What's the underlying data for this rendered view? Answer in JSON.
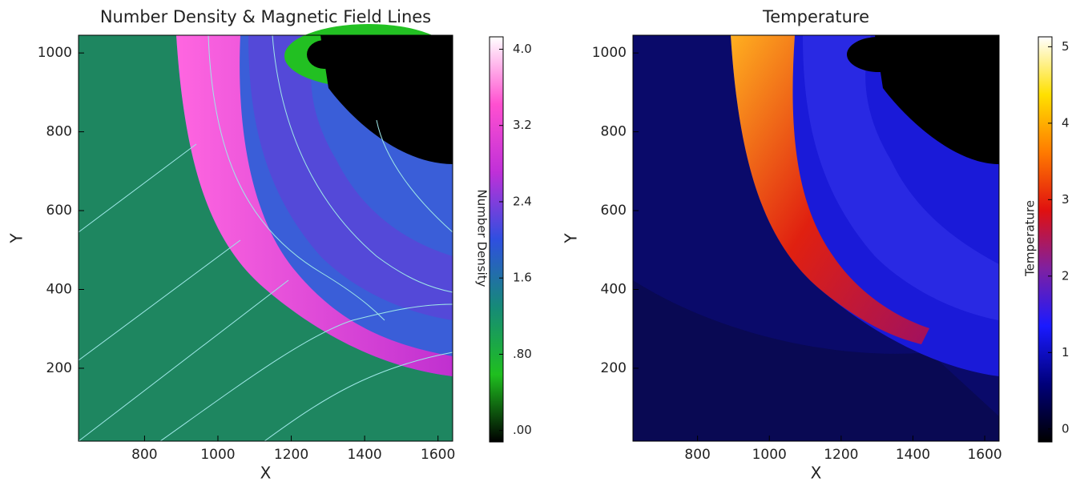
{
  "chart_data": [
    {
      "type": "heatmap",
      "title": "Number Density & Magnetic Field Lines",
      "xlabel": "X",
      "ylabel": "Y",
      "xlim": [
        620,
        1640
      ],
      "ylim": [
        15,
        1045
      ],
      "xticks": [
        800,
        1000,
        1200,
        1400,
        1600
      ],
      "yticks": [
        200,
        400,
        600,
        800,
        1000
      ],
      "colorbar": {
        "label": "Number Density",
        "lim": [
          -0.12,
          4.13
        ],
        "ticks": [
          {
            "value": 0,
            "label": ".00"
          },
          {
            "value": 0.8,
            "label": ".80"
          },
          {
            "value": 1.6,
            "label": "1.6"
          },
          {
            "value": 2.4,
            "label": "2.4"
          },
          {
            "value": 3.2,
            "label": "3.2"
          },
          {
            "value": 4.0,
            "label": "4.0"
          }
        ],
        "colors": [
          "#000000",
          "#1fbf1f",
          "#168a78",
          "#2f4fe0",
          "#c030d8",
          "#ff50d0",
          "#ffffff"
        ]
      }
    },
    {
      "type": "heatmap",
      "title": "Temperature",
      "xlabel": "X",
      "ylabel": "Y",
      "xlim": [
        620,
        1640
      ],
      "ylim": [
        15,
        1045
      ],
      "xticks": [
        800,
        1000,
        1200,
        1400,
        1600
      ],
      "yticks": [
        200,
        400,
        600,
        800,
        1000
      ],
      "colorbar": {
        "label": "Temperature",
        "lim": [
          -0.17,
          5.13
        ],
        "ticks": [
          0,
          1,
          2,
          3,
          4,
          5
        ],
        "colors": [
          "#000000",
          "#00007a",
          "#1a1aff",
          "#8020a0",
          "#e01010",
          "#ff7a00",
          "#ffe000",
          "#ffffff"
        ]
      }
    }
  ]
}
